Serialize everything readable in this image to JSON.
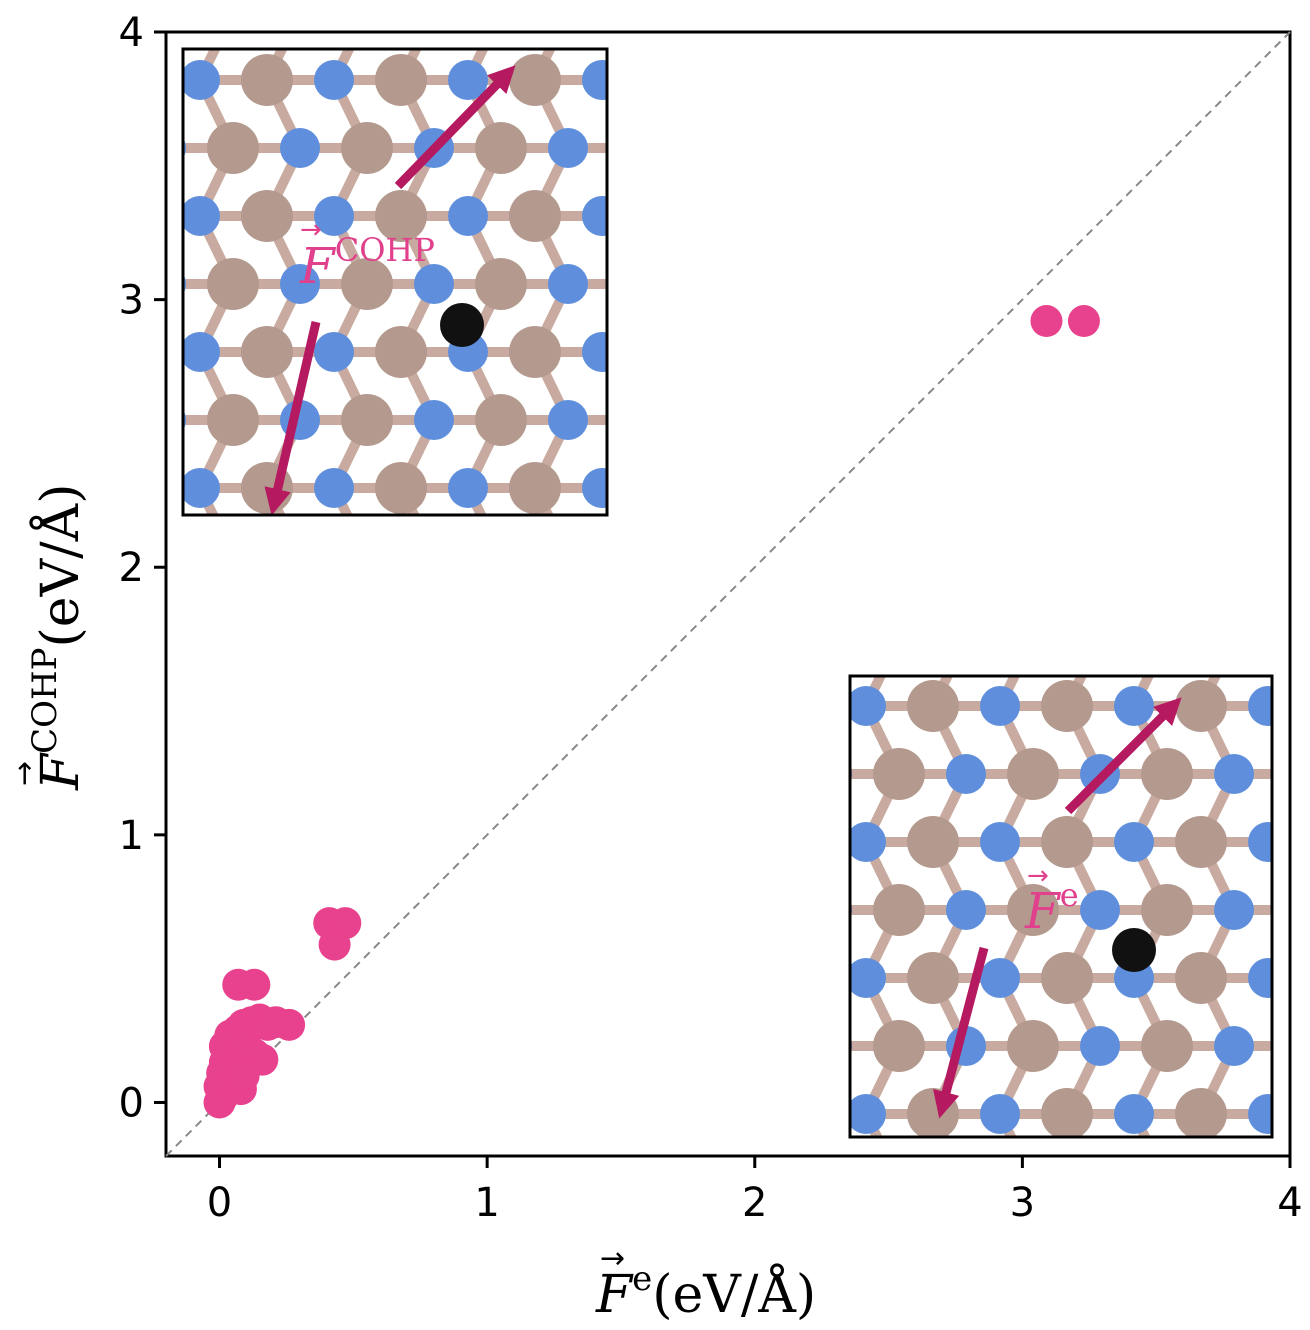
{
  "chart_data": {
    "type": "scatter",
    "xlabel": {
      "symbol": "F",
      "superscript": "e",
      "units": "(eV/Å)"
    },
    "ylabel": {
      "symbol": "F",
      "superscript": "COHP",
      "units": "(eV/Å)"
    },
    "xlim": [
      -0.2,
      4.0
    ],
    "ylim": [
      -0.2,
      4.0
    ],
    "x_ticks": [
      "0",
      "1",
      "2",
      "3",
      "4"
    ],
    "y_ticks": [
      "0",
      "1",
      "2",
      "3",
      "4"
    ],
    "reference_line": "y = x (dashed, gray)",
    "marker_color": "#e8418e",
    "points": [
      {
        "x": 0.0,
        "y": 0.0
      },
      {
        "x": 0.01,
        "y": 0.02
      },
      {
        "x": 0.02,
        "y": 0.04
      },
      {
        "x": 0.0,
        "y": 0.06
      },
      {
        "x": 0.03,
        "y": 0.08
      },
      {
        "x": 0.01,
        "y": 0.11
      },
      {
        "x": 0.04,
        "y": 0.13
      },
      {
        "x": 0.02,
        "y": 0.15
      },
      {
        "x": 0.05,
        "y": 0.18
      },
      {
        "x": 0.02,
        "y": 0.21
      },
      {
        "x": 0.06,
        "y": 0.22
      },
      {
        "x": 0.04,
        "y": 0.25
      },
      {
        "x": 0.07,
        "y": 0.27
      },
      {
        "x": 0.09,
        "y": 0.29
      },
      {
        "x": 0.12,
        "y": 0.3
      },
      {
        "x": 0.15,
        "y": 0.31
      },
      {
        "x": 0.18,
        "y": 0.29
      },
      {
        "x": 0.21,
        "y": 0.3
      },
      {
        "x": 0.26,
        "y": 0.29
      },
      {
        "x": 0.1,
        "y": 0.21
      },
      {
        "x": 0.13,
        "y": 0.18
      },
      {
        "x": 0.16,
        "y": 0.16
      },
      {
        "x": 0.08,
        "y": 0.05
      },
      {
        "x": 0.09,
        "y": 0.1
      },
      {
        "x": 0.07,
        "y": 0.44
      },
      {
        "x": 0.13,
        "y": 0.44
      },
      {
        "x": 0.41,
        "y": 0.67
      },
      {
        "x": 0.47,
        "y": 0.67
      },
      {
        "x": 0.43,
        "y": 0.59
      },
      {
        "x": 3.09,
        "y": 2.92
      },
      {
        "x": 3.23,
        "y": 2.92
      }
    ],
    "insets": [
      {
        "label_symbol": "F",
        "label_superscript": "COHP",
        "position": "top-left"
      },
      {
        "label_symbol": "F",
        "label_superscript": "e",
        "position": "bottom-right"
      }
    ]
  }
}
